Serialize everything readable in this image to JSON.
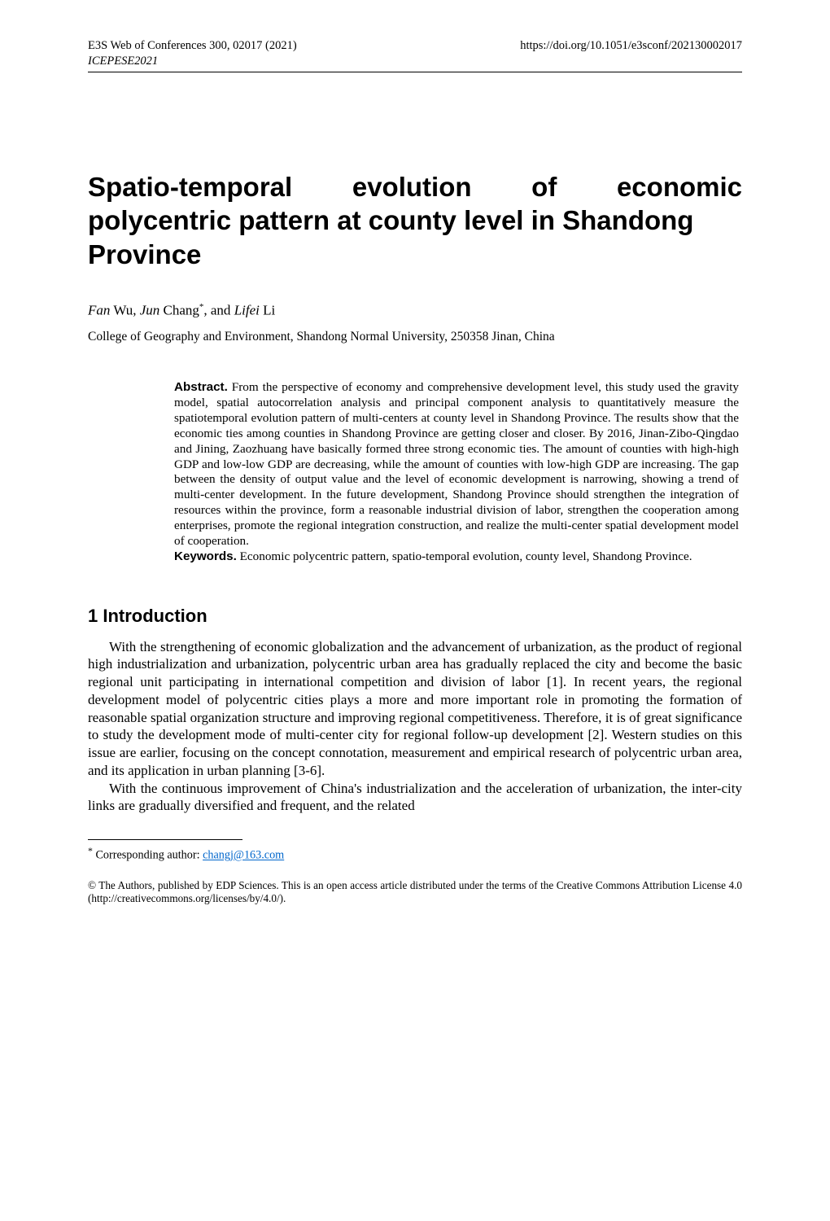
{
  "header": {
    "left": "E3S Web of Conferences 300, 02017 (2021)",
    "right": "https://doi.org/10.1051/e3sconf/202130002017",
    "sub": "ICEPESE2021"
  },
  "title": {
    "line1_words": [
      "Spatio-temporal",
      "evolution",
      "of",
      "economic"
    ],
    "line2": "polycentric pattern at county level in Shandong",
    "line3": "Province"
  },
  "authors": {
    "a1_given": "Fan",
    "a1_family": " Wu, ",
    "a2_given": "Jun",
    "a2_family": " Chang",
    "a2_sup": "*",
    "sep2": ", and ",
    "a3_given": "Lifei",
    "a3_family": " Li"
  },
  "affiliation": "College of Geography and Environment, Shandong Normal University, 250358 Jinan, China",
  "abstract": {
    "label": "Abstract.",
    "text": " From the perspective of economy and comprehensive development level, this study used the gravity model, spatial autocorrelation analysis and principal component analysis to quantitatively measure the spatiotemporal evolution pattern of multi-centers at county level in Shandong Province. The results show that the economic ties among counties in Shandong Province are getting closer and closer. By 2016, Jinan-Zibo-Qingdao and Jining, Zaozhuang have basically formed three strong economic ties. The amount of counties with high-high GDP and low-low GDP are decreasing, while the amount of counties with low-high GDP are increasing. The gap between the density of output value and the level of economic development is narrowing, showing a trend of multi-center development. In the future development, Shandong Province should strengthen the integration of resources within the province, form a reasonable industrial division of labor, strengthen the cooperation among enterprises, promote the regional integration construction, and realize the multi-center spatial development model of cooperation."
  },
  "keywords": {
    "label": "Keywords.",
    "text": " Economic polycentric pattern, spatio-temporal evolution, county level, Shandong Province."
  },
  "section1": {
    "heading": "1 Introduction",
    "p1": "With the strengthening of economic globalization and the advancement of urbanization, as the product of regional high industrialization and urbanization, polycentric urban area has gradually replaced the city and become the basic regional unit participating in international competition and division of labor [1]. In recent years, the regional development model of polycentric cities plays a more and more important role in promoting the formation of reasonable spatial organization structure and improving regional competitiveness. Therefore, it is of great significance to study the development mode of multi-center city for regional follow-up development [2]. Western studies on this issue are earlier, focusing on the concept connotation, measurement and empirical research of polycentric urban area, and its application in urban planning [3-6].",
    "p2": "With the continuous improvement of China's industrialization and the acceleration of urbanization, the inter-city links are gradually diversified and frequent, and the related"
  },
  "footnote": {
    "marker": "*",
    "text": " Corresponding author: ",
    "email": "changj@163.com"
  },
  "license": "© The Authors, published by EDP Sciences. This is an open access article distributed under the terms of the Creative Commons Attribution License 4.0 (http://creativecommons.org/licenses/by/4.0/)."
}
